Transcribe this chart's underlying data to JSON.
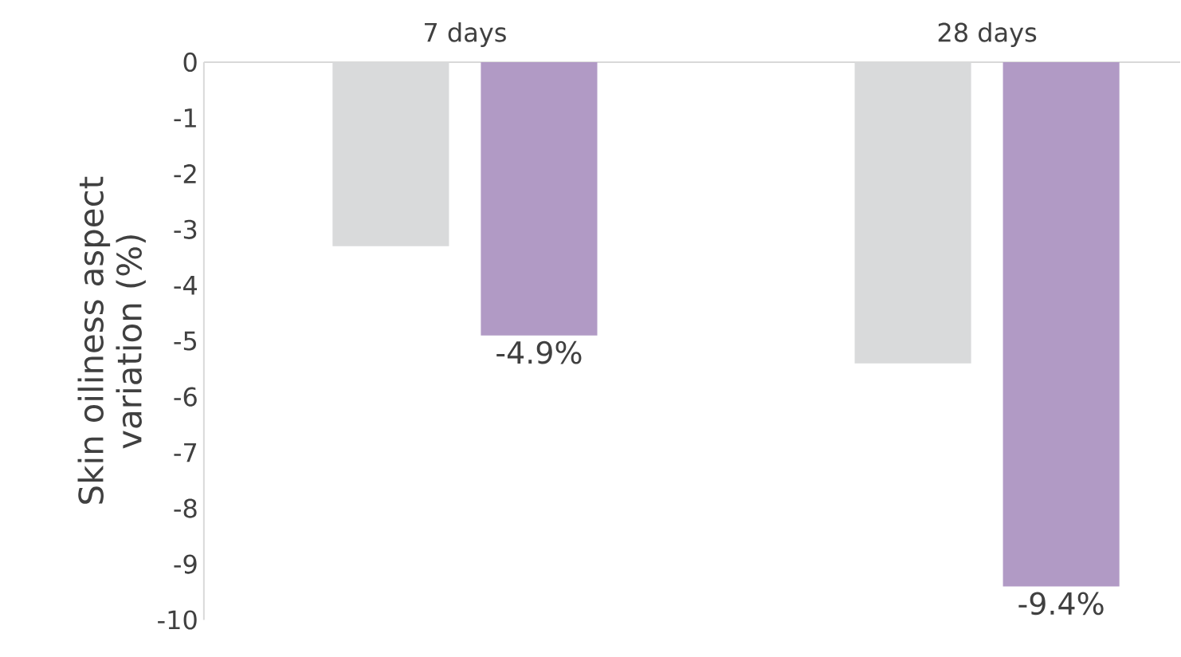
{
  "chart_data": {
    "type": "bar",
    "ylabel": "Skin oiliness aspect variation (%)",
    "categories": [
      "7 days",
      "28 days"
    ],
    "series": [
      {
        "color": "#d9dadb",
        "values": [
          -3.3,
          -5.4
        ]
      },
      {
        "color": "#b19ac5",
        "values": [
          -4.9,
          -9.4
        ],
        "value_labels": [
          "-4.9%",
          "-9.4%"
        ]
      }
    ],
    "ylim": [
      -10,
      0
    ],
    "yticks": [
      0,
      -1,
      -2,
      -3,
      -4,
      -5,
      -6,
      -7,
      -8,
      -9,
      -10
    ]
  }
}
